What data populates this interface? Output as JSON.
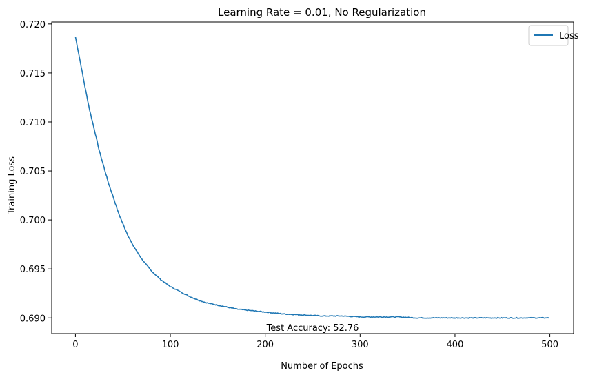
{
  "chart_data": {
    "type": "line",
    "title": "Learning Rate = 0.01, No Regularization",
    "xlabel": "Number of Epochs",
    "ylabel": "Training Loss",
    "xlim": [
      -25,
      525
    ],
    "ylim": [
      0.6884,
      0.7202
    ],
    "xticks": [
      0,
      100,
      200,
      300,
      400,
      500
    ],
    "yticks": [
      0.69,
      0.695,
      0.7,
      0.705,
      0.71,
      0.715,
      0.72
    ],
    "ytick_labels": [
      "0.690",
      "0.695",
      "0.700",
      "0.705",
      "0.710",
      "0.715",
      "0.720"
    ],
    "grid": false,
    "legend_position": "top-right",
    "series": [
      {
        "name": "Loss",
        "color": "#1f77b4",
        "x": [
          0,
          5,
          10,
          15,
          20,
          25,
          30,
          35,
          40,
          45,
          50,
          55,
          60,
          70,
          80,
          90,
          100,
          110,
          120,
          130,
          140,
          150,
          160,
          170,
          180,
          190,
          200,
          220,
          240,
          260,
          280,
          300,
          320,
          340,
          360,
          380,
          400,
          420,
          440,
          460,
          480,
          499
        ],
        "y": [
          0.7187,
          0.7162,
          0.7136,
          0.7112,
          0.7092,
          0.7071,
          0.7054,
          0.7037,
          0.7023,
          0.7008,
          0.6996,
          0.6985,
          0.6975,
          0.696,
          0.6948,
          0.6939,
          0.6932,
          0.6927,
          0.6922,
          0.6918,
          0.6915,
          0.6913,
          0.6911,
          0.6909,
          0.6908,
          0.6907,
          0.6906,
          0.6904,
          0.6903,
          0.6902,
          0.6902,
          0.6901,
          0.6901,
          0.6901,
          0.69,
          0.69,
          0.69,
          0.69,
          0.69,
          0.69,
          0.69,
          0.69
        ]
      }
    ],
    "annotation": {
      "text": "Test Accuracy: 52.76",
      "x": 250,
      "y": 0.6889
    }
  }
}
